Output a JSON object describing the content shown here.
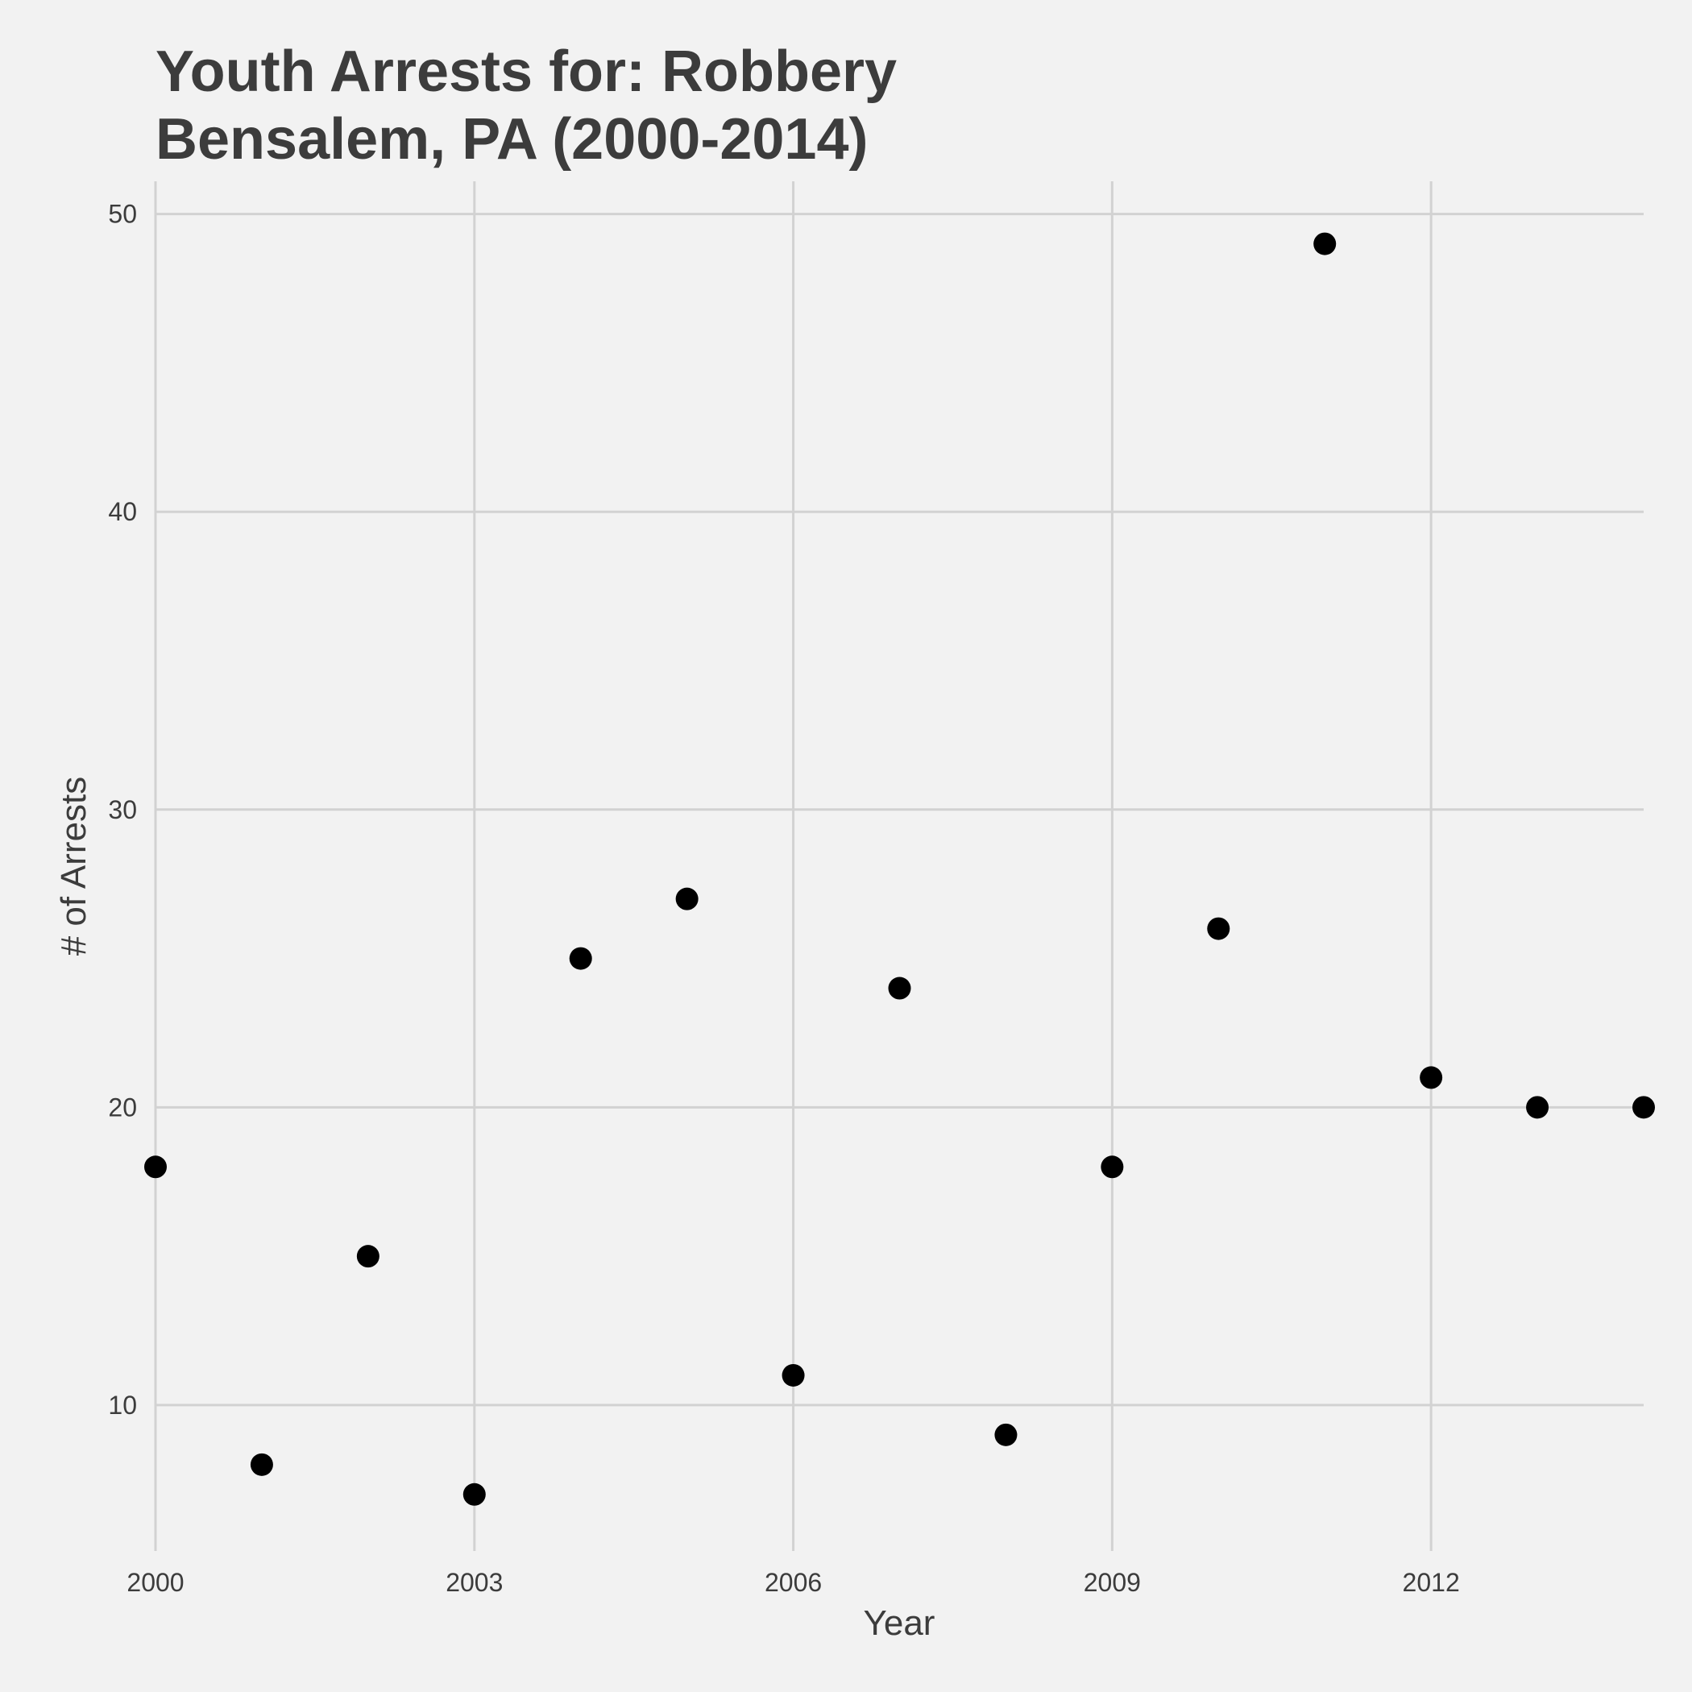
{
  "chart_data": {
    "type": "scatter",
    "title_lines": [
      "Youth Arrests for: Robbery",
      "Bensalem, PA (2000-2014)"
    ],
    "xlabel": "Year",
    "ylabel": "# of Arrests",
    "x": [
      2000,
      2001,
      2002,
      2003,
      2004,
      2005,
      2006,
      2007,
      2008,
      2009,
      2010,
      2011,
      2012,
      2013,
      2014
    ],
    "y": [
      18,
      8,
      15,
      7,
      25,
      27,
      11,
      24,
      9,
      18,
      26,
      49,
      21,
      20,
      20
    ],
    "xlim": [
      2000,
      2014
    ],
    "ylim": [
      5.1,
      51.1
    ],
    "x_ticks": [
      2000,
      2003,
      2006,
      2009,
      2012
    ],
    "x_tick_labels": [
      "2000",
      "2003",
      "2006",
      "2009",
      "2012"
    ],
    "y_ticks": [
      10,
      20,
      30,
      40,
      50
    ],
    "y_tick_labels": [
      "10",
      "20",
      "30",
      "40",
      "50"
    ],
    "grid": true,
    "legend": "none",
    "point_color": "#000000",
    "grid_color": "#d2d2d2",
    "background_color": "#f2f2f2",
    "text_color": "#3c3c3c"
  }
}
